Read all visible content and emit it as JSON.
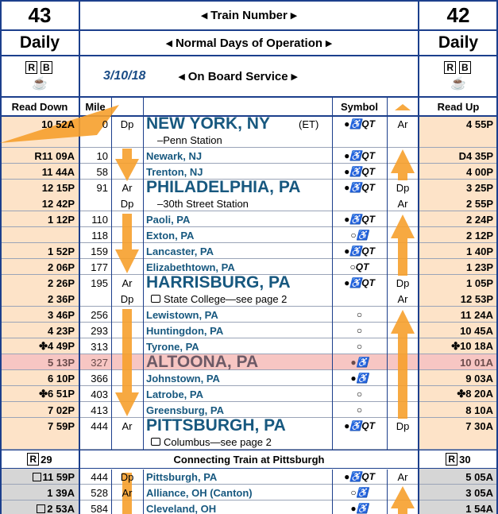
{
  "header": {
    "left_number": "43",
    "train_number": "◂ Train Number ▸",
    "right_number": "42",
    "left_days": "Daily",
    "days": "◂ Normal Days of Operation ▸",
    "right_days": "Daily",
    "left_icons": [
      "R",
      "B",
      "☕"
    ],
    "date": "3/10/18",
    "service": "◂ On Board Service ▸",
    "right_icons": [
      "R",
      "B",
      "☕"
    ]
  },
  "columns": {
    "read_down": "Read Down",
    "mile": "Mile",
    "symbol": "Symbol",
    "read_up": "Read Up"
  },
  "rows": [
    {
      "down": [
        "10 52A"
      ],
      "mile": 0,
      "down_event": [
        "Dp"
      ],
      "station": "NEW YORK, NY",
      "zone": "(ET)",
      "note": "–Penn Station",
      "symbols": "●♿QT",
      "up_event": [
        "Ar"
      ],
      "up": [
        "4 55P"
      ],
      "major": true
    },
    {
      "down": [
        "R11 09A"
      ],
      "mile": 10,
      "station": "Newark, NJ",
      "symbols": "●♿QT",
      "up": [
        "D4 35P"
      ]
    },
    {
      "down": [
        "11 44A"
      ],
      "mile": 58,
      "station": "Trenton, NJ",
      "symbols": "●♿QT",
      "up": [
        "4 00P"
      ]
    },
    {
      "down": [
        "12 15P",
        "12 42P"
      ],
      "mile": 91,
      "down_event": [
        "Ar",
        "Dp"
      ],
      "station": "PHILADELPHIA, PA",
      "note": "–30th Street Station",
      "symbols": "●♿QT",
      "up_event": [
        "Dp",
        "Ar"
      ],
      "up": [
        "3 25P",
        "2 55P"
      ],
      "major": true
    },
    {
      "down": [
        "1 12P"
      ],
      "mile": 110,
      "station": "Paoli, PA",
      "symbols": "●♿QT",
      "up": [
        "2 24P"
      ]
    },
    {
      "down": [],
      "mile": 118,
      "station": "Exton, PA",
      "symbols": "○♿",
      "up": [
        "2 12P"
      ]
    },
    {
      "down": [
        "1 52P"
      ],
      "mile": 159,
      "station": "Lancaster, PA",
      "symbols": "●♿QT",
      "up": [
        "1 40P"
      ]
    },
    {
      "down": [
        "2 06P"
      ],
      "mile": 177,
      "station": "Elizabethtown, PA",
      "symbols": "○QT",
      "up": [
        "1 23P"
      ]
    },
    {
      "down": [
        "2 26P",
        "2 36P"
      ],
      "mile": 195,
      "down_event": [
        "Ar",
        "Dp"
      ],
      "station": "HARRISBURG, PA",
      "note": "State College—see page 2",
      "symbols": "●♿QT",
      "up_event": [
        "Dp",
        "Ar"
      ],
      "up": [
        "1 05P",
        "12 53P"
      ],
      "major": true,
      "bus_note": true
    },
    {
      "down": [
        "3 46P"
      ],
      "mile": 256,
      "station": "Lewistown, PA",
      "symbols": "○",
      "up": [
        "11 24A"
      ]
    },
    {
      "down": [
        "4 23P"
      ],
      "mile": 293,
      "station": "Huntingdon, PA",
      "symbols": "○",
      "up": [
        "10 45A"
      ]
    },
    {
      "down": [
        "✤4 49P"
      ],
      "mile": 313,
      "station": "Tyrone, PA",
      "symbols": "○",
      "up": [
        "✤10 18A"
      ]
    },
    {
      "down": [
        "5 13P"
      ],
      "mile": 327,
      "station": "ALTOONA, PA",
      "symbols": "●♿",
      "up": [
        "10 01A"
      ],
      "major": true,
      "highlight": true
    },
    {
      "down": [
        "6 10P"
      ],
      "mile": 366,
      "station": "Johnstown, PA",
      "symbols": "●♿",
      "up": [
        "9 03A"
      ]
    },
    {
      "down": [
        "✤6 51P"
      ],
      "mile": 403,
      "station": "Latrobe, PA",
      "symbols": "○",
      "up": [
        "✤8 20A"
      ]
    },
    {
      "down": [
        "7 02P"
      ],
      "mile": 413,
      "station": "Greensburg, PA",
      "symbols": "○",
      "up": [
        "8 10A"
      ]
    },
    {
      "down": [
        "7 59P"
      ],
      "mile": 444,
      "down_event": [
        "Ar"
      ],
      "station": "PITTSBURGH, PA",
      "note": "Columbus—see page 2",
      "symbols": "●♿QT",
      "up_event": [
        "Dp"
      ],
      "up": [
        "7 30A"
      ],
      "major": true,
      "bus_note": true
    }
  ],
  "connection": {
    "left_badge": "R",
    "left_number": "29",
    "title": "Connecting Train at Pittsburgh",
    "right_badge": "R",
    "right_number": "30"
  },
  "connecting_rows": [
    {
      "down": [
        "11 59P"
      ],
      "mile": 444,
      "down_event": [
        "Dp"
      ],
      "station": "Pittsburgh, PA",
      "symbols": "●♿QT",
      "up_event": [
        "Ar"
      ],
      "up": [
        "5 05A"
      ],
      "bus": true
    },
    {
      "down": [
        "1 39A"
      ],
      "mile": 528,
      "down_event": [
        "Ar"
      ],
      "station": "Alliance, OH (Canton)",
      "symbols": "○♿",
      "up": [
        "3 05A"
      ]
    },
    {
      "down": [
        "2 53A"
      ],
      "mile": 584,
      "station": "Cleveland, OH",
      "symbols": "●♿",
      "up": [
        "1 54A"
      ],
      "bus": true
    }
  ]
}
